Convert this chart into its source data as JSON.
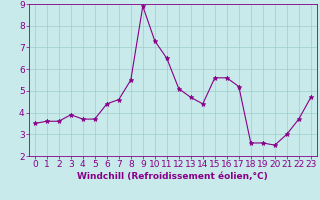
{
  "x": [
    0,
    1,
    2,
    3,
    4,
    5,
    6,
    7,
    8,
    9,
    10,
    11,
    12,
    13,
    14,
    15,
    16,
    17,
    18,
    19,
    20,
    21,
    22,
    23
  ],
  "y": [
    3.5,
    3.6,
    3.6,
    3.9,
    3.7,
    3.7,
    4.4,
    4.6,
    5.5,
    8.9,
    7.3,
    6.5,
    5.1,
    4.7,
    4.4,
    5.6,
    5.6,
    5.2,
    2.6,
    2.6,
    2.5,
    3.0,
    3.7,
    4.7
  ],
  "line_color": "#880088",
  "marker": "*",
  "marker_size": 3.5,
  "bg_color": "#c8eaea",
  "grid_color": "#a0cccc",
  "xlabel": "Windchill (Refroidissement éolien,°C)",
  "xlabel_color": "#880088",
  "tick_color": "#880088",
  "ylim": [
    2,
    9
  ],
  "xlim": [
    -0.5,
    23.5
  ],
  "yticks": [
    2,
    3,
    4,
    5,
    6,
    7,
    8,
    9
  ],
  "xticks": [
    0,
    1,
    2,
    3,
    4,
    5,
    6,
    7,
    8,
    9,
    10,
    11,
    12,
    13,
    14,
    15,
    16,
    17,
    18,
    19,
    20,
    21,
    22,
    23
  ],
  "spine_color": "#880088",
  "font_size_xlabel": 6.5,
  "font_size_ticks": 6.5,
  "line_width": 0.8
}
